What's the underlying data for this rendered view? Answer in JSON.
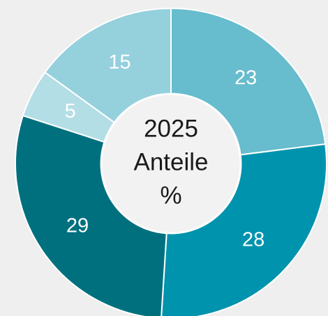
{
  "chart_data": {
    "type": "donut",
    "center_text": [
      "2025",
      "Anteile",
      "%"
    ],
    "values": [
      23,
      28,
      29,
      5,
      15
    ],
    "colors": [
      "#67bccd",
      "#0093ad",
      "#00707f",
      "#b3dee6",
      "#95d0dd"
    ]
  }
}
